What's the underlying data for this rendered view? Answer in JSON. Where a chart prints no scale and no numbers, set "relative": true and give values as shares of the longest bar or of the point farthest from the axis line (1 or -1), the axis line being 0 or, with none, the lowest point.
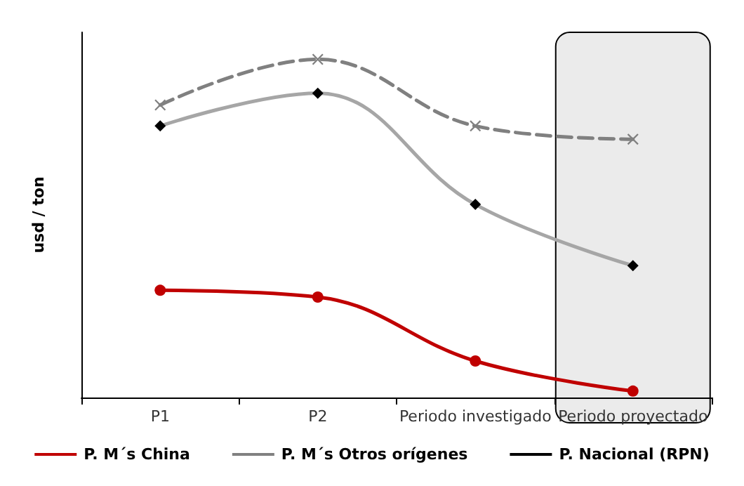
{
  "chart_data": {
    "type": "line",
    "relative": true,
    "ylabel": "usd / ton",
    "categories": [
      "P1",
      "P2",
      "Periodo investigado",
      "Periodo proyectado"
    ],
    "series": [
      {
        "name": "P. M´s China",
        "color": "#c00000",
        "marker": "circle",
        "line_style": "solid",
        "values": [
          0.317,
          0.297,
          0.108,
          0.019
        ]
      },
      {
        "name": "P. M´s Otros orígenes",
        "color": "#808080",
        "marker": "cross",
        "line_style": "dashed",
        "values": [
          0.865,
          1,
          0.803,
          0.764
        ]
      },
      {
        "name": "P. Nacional (RPN)",
        "color": "#a6a6a6",
        "marker": "diamond",
        "line_style": "solid",
        "values": [
          0.803,
          0.9,
          0.571,
          0.39
        ]
      }
    ],
    "bands": [
      {
        "axis": "x",
        "from": "Periodo proyectado",
        "to": "Periodo proyectado",
        "color": "#ebebeb"
      }
    ],
    "legend": "bottom",
    "grid": false
  }
}
